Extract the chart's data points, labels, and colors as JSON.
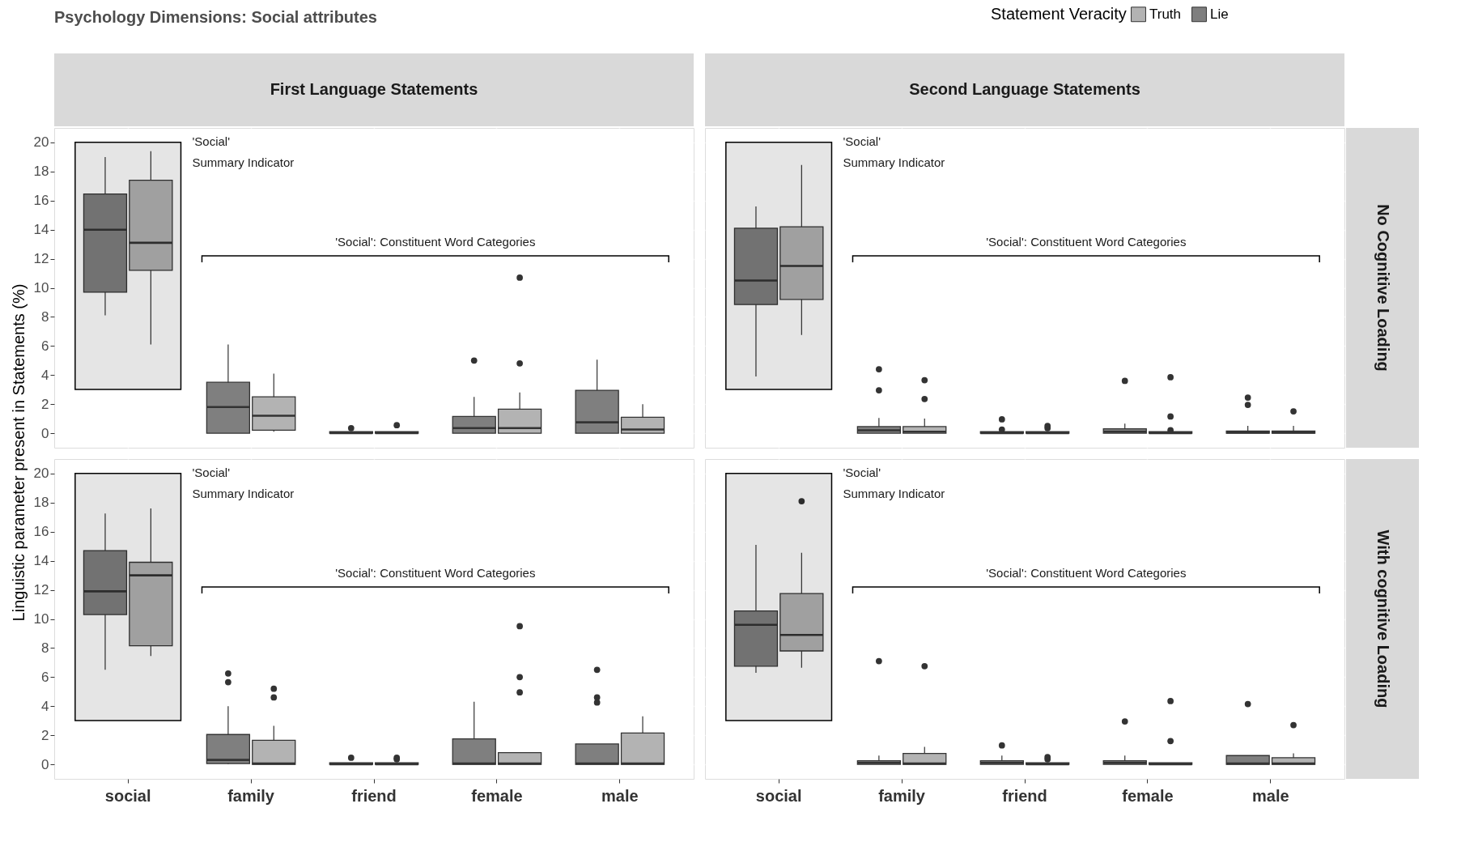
{
  "chart_data": [
    {
      "type": "box",
      "title": "Psychology Dimensions: Social attributes",
      "subtitle": "First Language Statements",
      "ylabel": "Linguistic parameter present in Statements (%)",
      "legend_title": "Statement Veracity",
      "legend": "top right",
      "grid": true,
      "tick_labels": "y",
      "categories": [
        "social",
        "family",
        "friend",
        "female",
        "male"
      ],
      "ylim": [
        -1,
        21
      ],
      "yticks": [
        0,
        2,
        4,
        6,
        8,
        10,
        12,
        14,
        16,
        18,
        20
      ],
      "annotations": [
        "'Social'",
        "Summary Indicator",
        "'Social': Constituent Word Categories"
      ],
      "series": [
        {
          "name": "Lie",
          "color": "#7f7f7f",
          "boxes": [
            {
              "low": 8.1,
              "q1": 9.7,
              "median": 14.0,
              "q3": 16.45,
              "high": 19.0
            },
            {
              "low": 0,
              "q1": 0,
              "median": 1.8,
              "q3": 3.5,
              "high": 6.1
            },
            {
              "low": 0,
              "q1": 0,
              "median": 0,
              "q3": 0.1,
              "high": 0.1,
              "outliers": [
                0.35
              ]
            },
            {
              "low": 0,
              "q1": 0,
              "median": 0.35,
              "q3": 1.15,
              "high": 2.5,
              "outliers": [
                5.0
              ]
            },
            {
              "low": 0,
              "q1": 0,
              "median": 0.75,
              "q3": 2.95,
              "high": 5.05
            }
          ]
        },
        {
          "name": "Truth",
          "color": "#b3b3b3",
          "boxes": [
            {
              "low": 6.1,
              "q1": 11.2,
              "median": 13.1,
              "q3": 17.4,
              "high": 19.4
            },
            {
              "low": 0.1,
              "q1": 0.2,
              "median": 1.2,
              "q3": 2.5,
              "high": 4.1
            },
            {
              "low": 0,
              "q1": 0,
              "median": 0,
              "q3": 0.1,
              "high": 0.1,
              "outliers": [
                0.55
              ]
            },
            {
              "low": 0,
              "q1": 0,
              "median": 0.35,
              "q3": 1.65,
              "high": 2.8,
              "outliers": [
                4.8,
                10.7
              ]
            },
            {
              "low": 0,
              "q1": 0,
              "median": 0.25,
              "q3": 1.1,
              "high": 2.0
            }
          ]
        }
      ]
    },
    {
      "type": "box",
      "subtitle": "Second Language Statements",
      "y2label": "No Cognitive Loading",
      "grid": true,
      "tick_labels": false,
      "categories": [
        "social",
        "family",
        "friend",
        "female",
        "male"
      ],
      "ylim": [
        -1,
        21
      ],
      "yticks": [
        0,
        2,
        4,
        6,
        8,
        10,
        12,
        14,
        16,
        18,
        20
      ],
      "annotations": [
        "'Social'",
        "Summary Indicator",
        "'Social': Constituent Word Categories"
      ],
      "series": [
        {
          "name": "Lie",
          "color": "#7f7f7f",
          "boxes": [
            {
              "low": 3.9,
              "q1": 8.85,
              "median": 10.5,
              "q3": 14.1,
              "high": 15.6
            },
            {
              "low": 0,
              "q1": 0,
              "median": 0.2,
              "q3": 0.45,
              "high": 1.05,
              "outliers": [
                2.95,
                4.4
              ]
            },
            {
              "low": 0,
              "q1": 0,
              "median": 0,
              "q3": 0.1,
              "high": 0.1,
              "outliers": [
                0.25,
                0.95
              ]
            },
            {
              "low": 0,
              "q1": 0,
              "median": 0.1,
              "q3": 0.3,
              "high": 0.65,
              "outliers": [
                3.6
              ]
            },
            {
              "low": 0,
              "q1": 0,
              "median": 0.05,
              "q3": 0.15,
              "high": 0.5,
              "outliers": [
                1.95,
                2.45
              ]
            }
          ]
        },
        {
          "name": "Truth",
          "color": "#b3b3b3",
          "boxes": [
            {
              "low": 6.75,
              "q1": 9.2,
              "median": 11.5,
              "q3": 14.2,
              "high": 18.45
            },
            {
              "low": 0,
              "q1": 0,
              "median": 0.1,
              "q3": 0.45,
              "high": 1.0,
              "outliers": [
                2.35,
                3.65
              ]
            },
            {
              "low": 0,
              "q1": 0,
              "median": 0,
              "q3": 0.1,
              "high": 0.1,
              "outliers": [
                0.35,
                0.5
              ]
            },
            {
              "low": 0,
              "q1": 0,
              "median": 0,
              "q3": 0.1,
              "high": 0.1,
              "outliers": [
                0.2,
                1.15,
                3.85
              ]
            },
            {
              "low": 0,
              "q1": 0,
              "median": 0.05,
              "q3": 0.15,
              "high": 0.5,
              "outliers": [
                1.5
              ]
            }
          ]
        }
      ]
    },
    {
      "type": "box",
      "grid": true,
      "categories": [
        "social",
        "family",
        "friend",
        "female",
        "male"
      ],
      "ylim": [
        -1,
        21
      ],
      "yticks": [
        0,
        2,
        4,
        6,
        8,
        10,
        12,
        14,
        16,
        18,
        20
      ],
      "annotations": [
        "'Social'",
        "Summary Indicator",
        "'Social': Constituent Word Categories"
      ],
      "series": [
        {
          "name": "Lie",
          "color": "#7f7f7f",
          "boxes": [
            {
              "low": 6.5,
              "q1": 10.3,
              "median": 11.9,
              "q3": 14.7,
              "high": 17.25
            },
            {
              "low": 0,
              "q1": 0.05,
              "median": 0.3,
              "q3": 2.05,
              "high": 4.0,
              "outliers": [
                5.65,
                6.25
              ]
            },
            {
              "low": 0,
              "q1": 0,
              "median": 0,
              "q3": 0.1,
              "high": 0.1,
              "outliers": [
                0.45
              ]
            },
            {
              "low": 0,
              "q1": 0,
              "median": 0.05,
              "q3": 1.75,
              "high": 4.3
            },
            {
              "low": 0,
              "q1": 0,
              "median": 0.05,
              "q3": 1.4,
              "high": 1.4,
              "outliers": [
                4.25,
                4.6,
                6.5
              ]
            }
          ]
        },
        {
          "name": "Truth",
          "color": "#b3b3b3",
          "boxes": [
            {
              "low": 7.45,
              "q1": 8.15,
              "median": 13.0,
              "q3": 13.9,
              "high": 17.6
            },
            {
              "low": 0,
              "q1": 0,
              "median": 0.05,
              "q3": 1.65,
              "high": 2.65,
              "outliers": [
                4.6,
                5.2
              ]
            },
            {
              "low": 0,
              "q1": 0,
              "median": 0,
              "q3": 0.1,
              "high": 0.1,
              "outliers": [
                0.35,
                0.45
              ]
            },
            {
              "low": 0,
              "q1": 0,
              "median": 0.05,
              "q3": 0.8,
              "high": 0.8,
              "outliers": [
                4.95,
                6.0,
                9.5
              ]
            },
            {
              "low": 0,
              "q1": 0,
              "median": 0.05,
              "q3": 2.15,
              "high": 3.3
            }
          ]
        }
      ]
    },
    {
      "type": "box",
      "y2label": "With cognitive Loading",
      "grid": true,
      "tick_labels": "x",
      "categories": [
        "social",
        "family",
        "friend",
        "female",
        "male"
      ],
      "ylim": [
        -1,
        21
      ],
      "yticks": [
        0,
        2,
        4,
        6,
        8,
        10,
        12,
        14,
        16,
        18,
        20
      ],
      "annotations": [
        "'Social'",
        "Summary Indicator",
        "'Social': Constituent Word Categories"
      ],
      "series": [
        {
          "name": "Lie",
          "color": "#7f7f7f",
          "boxes": [
            {
              "low": 6.3,
              "q1": 6.75,
              "median": 9.6,
              "q3": 10.55,
              "high": 15.1
            },
            {
              "low": 0,
              "q1": 0,
              "median": 0.1,
              "q3": 0.25,
              "high": 0.6,
              "outliers": [
                7.1
              ]
            },
            {
              "low": 0,
              "q1": 0,
              "median": 0.1,
              "q3": 0.25,
              "high": 0.6,
              "outliers": [
                1.3
              ]
            },
            {
              "low": 0,
              "q1": 0,
              "median": 0.1,
              "q3": 0.25,
              "high": 0.6,
              "outliers": [
                2.95
              ]
            },
            {
              "low": 0,
              "q1": 0,
              "median": 0.05,
              "q3": 0.6,
              "high": 0.6,
              "outliers": [
                4.15
              ]
            }
          ]
        },
        {
          "name": "Truth",
          "color": "#b3b3b3",
          "boxes": [
            {
              "low": 6.65,
              "q1": 7.8,
              "median": 8.9,
              "q3": 11.75,
              "high": 14.55,
              "outliers": [
                18.1
              ]
            },
            {
              "low": 0,
              "q1": 0,
              "median": 0.05,
              "q3": 0.75,
              "high": 1.2,
              "outliers": [
                6.75
              ]
            },
            {
              "low": 0,
              "q1": 0,
              "median": 0,
              "q3": 0.1,
              "high": 0.1,
              "outliers": [
                0.35,
                0.5
              ]
            },
            {
              "low": 0,
              "q1": 0,
              "median": 0,
              "q3": 0.1,
              "high": 0.1,
              "outliers": [
                1.6,
                4.35
              ]
            },
            {
              "low": 0,
              "q1": 0,
              "median": 0.05,
              "q3": 0.45,
              "high": 0.75,
              "outliers": [
                2.7
              ]
            }
          ]
        }
      ]
    }
  ]
}
